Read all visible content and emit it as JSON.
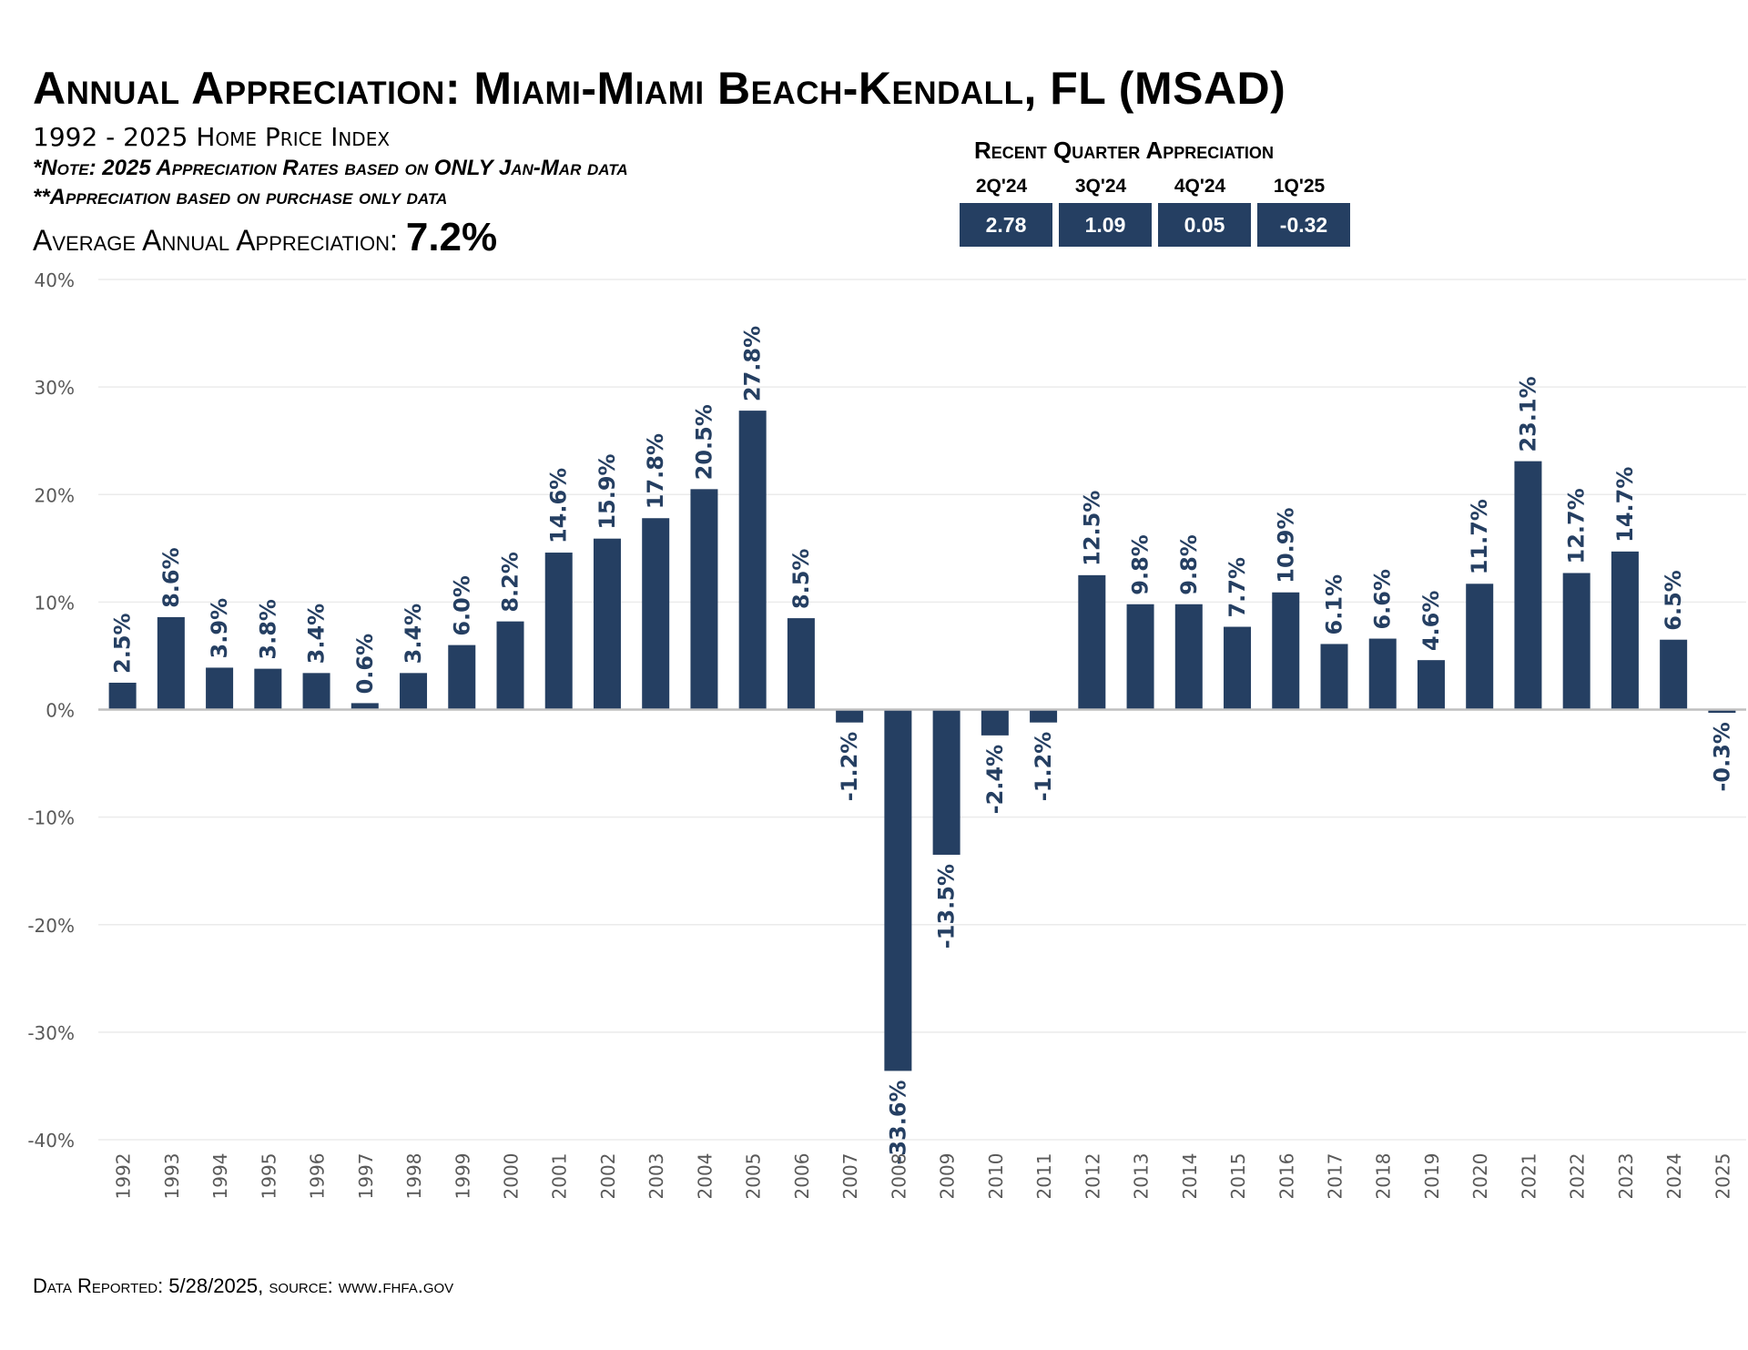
{
  "header": {
    "title": "Annual Appreciation: Miami-Miami Beach-Kendall, FL (MSAD)",
    "subtitle": "1992 - 2025 Home Price Index",
    "note1": "*Note: 2025 Appreciation Rates based on ONLY Jan-Mar data",
    "note2": "**Appreciation based on purchase only data",
    "avg_label": "Average Annual Appreciation: ",
    "avg_value": "7.2%"
  },
  "recent_quarter": {
    "title": "Recent Quarter Appreciation",
    "items": [
      {
        "label": "2Q'24",
        "value": "2.78"
      },
      {
        "label": "3Q'24",
        "value": "1.09"
      },
      {
        "label": "4Q'24",
        "value": "0.05"
      },
      {
        "label": "1Q'25",
        "value": "-0.32"
      }
    ]
  },
  "footer": "Data Reported: 5/28/2025, source: www.fhfa.gov",
  "colors": {
    "bar": "#253f62",
    "label": "#253f62",
    "grid": "#ebebeb",
    "axis": "#bfbfbf",
    "tick": "#595959"
  },
  "chart_data": {
    "type": "bar",
    "categories": [
      "1992",
      "1993",
      "1994",
      "1995",
      "1996",
      "1997",
      "1998",
      "1999",
      "2000",
      "2001",
      "2002",
      "2003",
      "2004",
      "2005",
      "2006",
      "2007",
      "2008",
      "2009",
      "2010",
      "2011",
      "2012",
      "2013",
      "2014",
      "2015",
      "2016",
      "2017",
      "2018",
      "2019",
      "2020",
      "2021",
      "2022",
      "2023",
      "2024",
      "2025"
    ],
    "values": [
      2.5,
      8.6,
      3.9,
      3.8,
      3.4,
      0.6,
      3.4,
      6.0,
      8.2,
      14.6,
      15.9,
      17.8,
      20.5,
      27.8,
      8.5,
      -1.2,
      -33.6,
      -13.5,
      -2.4,
      -1.2,
      12.5,
      9.8,
      9.8,
      7.7,
      10.9,
      6.1,
      6.6,
      4.6,
      11.7,
      23.1,
      12.7,
      14.7,
      6.5,
      -0.3
    ],
    "data_labels": [
      "2.5%",
      "8.6%",
      "3.9%",
      "3.8%",
      "3.4%",
      "0.6%",
      "3.4%",
      "6.0%",
      "8.2%",
      "14.6%",
      "15.9%",
      "17.8%",
      "20.5%",
      "27.8%",
      "8.5%",
      "-1.2%",
      "-33.6%",
      "-13.5%",
      "-2.4%",
      "-1.2%",
      "12.5%",
      "9.8%",
      "9.8%",
      "7.7%",
      "10.9%",
      "6.1%",
      "6.6%",
      "4.6%",
      "11.7%",
      "23.1%",
      "12.7%",
      "14.7%",
      "6.5%",
      "-0.3%"
    ],
    "ylim": [
      -40,
      40
    ],
    "yticks": [
      40,
      30,
      20,
      10,
      0,
      -10,
      -20,
      -30,
      -40
    ],
    "ytick_labels": [
      "40%",
      "30%",
      "20%",
      "10%",
      "0%",
      "-10%",
      "-20%",
      "-30%",
      "-40%"
    ],
    "grid": true,
    "legend": "none"
  }
}
